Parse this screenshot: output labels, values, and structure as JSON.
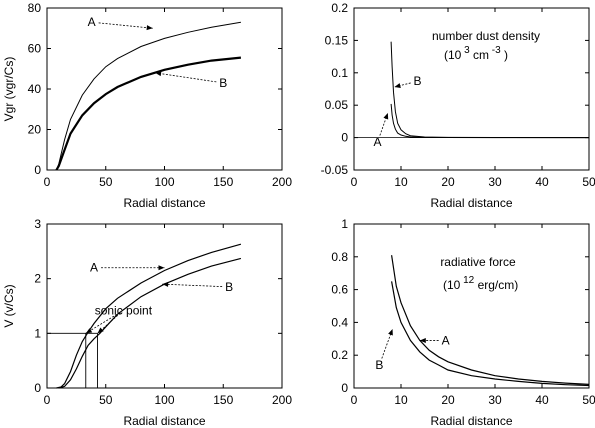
{
  "chart_data": [
    {
      "type": "line",
      "xlabel": "Radial distance",
      "ylabel": "Vgr  (vgr/Cs)",
      "xlim": [
        0,
        200
      ],
      "ylim": [
        0,
        80
      ],
      "xticks": [
        0,
        50,
        100,
        150,
        200
      ],
      "yticks": [
        0,
        20,
        40,
        60,
        80
      ],
      "series": [
        {
          "name": "A",
          "x": [
            8,
            10,
            15,
            20,
            30,
            40,
            50,
            60,
            80,
            100,
            120,
            140,
            165
          ],
          "y": [
            0,
            3,
            15,
            25,
            37,
            45,
            51,
            55,
            61,
            65,
            68,
            70.5,
            73
          ]
        },
        {
          "name": "B",
          "x": [
            8,
            10,
            15,
            20,
            30,
            40,
            50,
            60,
            80,
            100,
            120,
            140,
            165
          ],
          "y": [
            0,
            2,
            10,
            18,
            27,
            33,
            37.5,
            41,
            46,
            49.5,
            52,
            54,
            55.5
          ]
        }
      ],
      "annotations": [
        {
          "text": "A",
          "x": 38,
          "y": 73,
          "arrow_to": [
            90,
            70
          ]
        },
        {
          "text": "B",
          "x": 150,
          "y": 43,
          "arrow_to": [
            92,
            48
          ]
        }
      ]
    },
    {
      "type": "line",
      "xlabel": "Radial distance",
      "ylabel": "",
      "xlim": [
        0,
        50
      ],
      "ylim": [
        -0.05,
        0.2
      ],
      "xticks": [
        0,
        10,
        20,
        30,
        40,
        50
      ],
      "yticks": [
        -0.05,
        0,
        0.05,
        0.1,
        0.15,
        0.2
      ],
      "title_lines": [
        "number dust density",
        "(10",
        "3",
        "cm",
        "-3",
        ")"
      ],
      "series": [
        {
          "name": "A",
          "x": [
            7.9,
            8.1,
            8.4,
            8.8,
            9.3,
            10,
            11,
            12,
            15,
            20,
            30,
            50
          ],
          "y": [
            0.052,
            0.035,
            0.022,
            0.013,
            0.007,
            0.004,
            0.002,
            0.001,
            0.0003,
            0.0001,
            0,
            0
          ]
        },
        {
          "name": "B",
          "x": [
            7.9,
            8.1,
            8.4,
            8.8,
            9.3,
            10,
            11,
            12,
            15,
            20,
            30,
            50
          ],
          "y": [
            0.148,
            0.11,
            0.07,
            0.04,
            0.022,
            0.012,
            0.006,
            0.003,
            0.001,
            0.0003,
            0.0001,
            0
          ]
        }
      ],
      "annotations": [
        {
          "text": "A",
          "x": 5,
          "y": -0.007,
          "arrow_to": [
            7.2,
            0.038
          ]
        },
        {
          "text": "B",
          "x": 13.5,
          "y": 0.087,
          "arrow_to": [
            8.6,
            0.078
          ]
        }
      ]
    },
    {
      "type": "line",
      "xlabel": "Radial distance",
      "ylabel": "V  (v/Cs)",
      "xlim": [
        0,
        200
      ],
      "ylim": [
        0,
        3
      ],
      "xticks": [
        0,
        50,
        100,
        150,
        200
      ],
      "yticks": [
        0,
        1,
        2,
        3
      ],
      "series": [
        {
          "name": "A",
          "x": [
            8,
            12,
            15,
            20,
            25,
            30,
            35,
            40,
            50,
            60,
            80,
            100,
            120,
            140,
            165
          ],
          "y": [
            0,
            0.02,
            0.08,
            0.3,
            0.6,
            0.85,
            1.02,
            1.18,
            1.45,
            1.64,
            1.92,
            2.15,
            2.33,
            2.48,
            2.63
          ]
        },
        {
          "name": "B",
          "x": [
            10,
            15,
            20,
            25,
            30,
            35,
            40,
            45,
            50,
            60,
            80,
            100,
            120,
            140,
            165
          ],
          "y": [
            0,
            0.03,
            0.15,
            0.35,
            0.58,
            0.78,
            0.9,
            1.0,
            1.12,
            1.35,
            1.67,
            1.9,
            2.08,
            2.23,
            2.37
          ]
        }
      ],
      "sonic_guides": {
        "level": 1,
        "x_points": [
          33,
          43
        ]
      },
      "annotations": [
        {
          "text": "A",
          "x": 40,
          "y": 2.2,
          "arrow_to": [
            100,
            2.2
          ]
        },
        {
          "text": "B",
          "x": 155,
          "y": 1.85,
          "arrow_to": [
            98,
            1.9
          ]
        },
        {
          "text": "sonic point",
          "x": 65,
          "y": 1.42,
          "arrow_to": [
            33,
            1.0
          ],
          "arrow_to_2": [
            43,
            1.0
          ]
        }
      ]
    },
    {
      "type": "line",
      "xlabel": "Radial distance",
      "ylabel": "",
      "xlim": [
        0,
        50
      ],
      "ylim": [
        0,
        1
      ],
      "xticks": [
        0,
        10,
        20,
        30,
        40,
        50
      ],
      "yticks": [
        0,
        0.2,
        0.4,
        0.6,
        0.8,
        1
      ],
      "title_lines": [
        "radiative force",
        "(10",
        "12",
        "erg/cm)"
      ],
      "series": [
        {
          "name": "A",
          "x": [
            8,
            9,
            10,
            12,
            14,
            16,
            18,
            20,
            25,
            30,
            35,
            40,
            45,
            50
          ],
          "y": [
            0.81,
            0.62,
            0.52,
            0.38,
            0.29,
            0.23,
            0.19,
            0.16,
            0.11,
            0.075,
            0.055,
            0.04,
            0.03,
            0.022
          ]
        },
        {
          "name": "B",
          "x": [
            8,
            9,
            10,
            12,
            14,
            16,
            18,
            20,
            25,
            30,
            35,
            40,
            45,
            50
          ],
          "y": [
            0.65,
            0.49,
            0.4,
            0.29,
            0.22,
            0.17,
            0.14,
            0.11,
            0.075,
            0.055,
            0.04,
            0.028,
            0.02,
            0.015
          ]
        }
      ],
      "annotations": [
        {
          "text": "A",
          "x": 19.5,
          "y": 0.29,
          "arrow_to": [
            14,
            0.29
          ]
        },
        {
          "text": "B",
          "x": 5.4,
          "y": 0.14,
          "arrow_to": [
            8.2,
            0.36
          ]
        }
      ]
    }
  ]
}
